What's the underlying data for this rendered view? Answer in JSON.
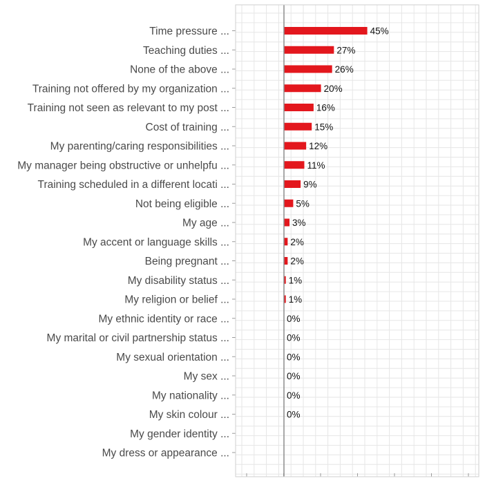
{
  "chart_data": {
    "type": "bar",
    "orientation": "horizontal",
    "title": "",
    "xlabel": "",
    "ylabel": "",
    "xlim": [
      -10,
      55
    ],
    "grid": true,
    "legend": "none",
    "colors": {
      "bar": "#e3171d",
      "axis": "#8c8c8c",
      "grid": "#e6e6e6",
      "label": "#4a4a4a"
    },
    "categories": [
      "Time pressure ...",
      "Teaching duties ...",
      "None of the above ...",
      "Training not offered by my organization ...",
      "Training not seen as relevant to my post ...",
      "Cost of training ...",
      "My parenting/caring responsibilities ...",
      "My manager being obstructive or unhelpfu ...",
      "Training scheduled in a different locati ...",
      "Not being eligible ...",
      "My age ...",
      "My accent or language skills  ...",
      "Being pregnant ...",
      "My disability status ...",
      "My religion or belief ...",
      "My ethnic identity or race ...",
      "My marital or civil partnership status ...",
      "My sexual orientation ...",
      "My sex ...",
      "My nationality ...",
      "My skin colour ...",
      "My gender identity ...",
      "My dress or appearance ..."
    ],
    "values": [
      45,
      27,
      26,
      20,
      16,
      15,
      12,
      11,
      9,
      5,
      3,
      2,
      2,
      1,
      1,
      0,
      0,
      0,
      0,
      0,
      0,
      null,
      null
    ],
    "data_labels": [
      "45%",
      "27%",
      "26%",
      "20%",
      "16%",
      "15%",
      "12%",
      "11%",
      "9%",
      "5%",
      "3%",
      "2%",
      "2%",
      "1%",
      "1%",
      "0%",
      "0%",
      "0%",
      "0%",
      "0%",
      "0%",
      "",
      ""
    ]
  }
}
